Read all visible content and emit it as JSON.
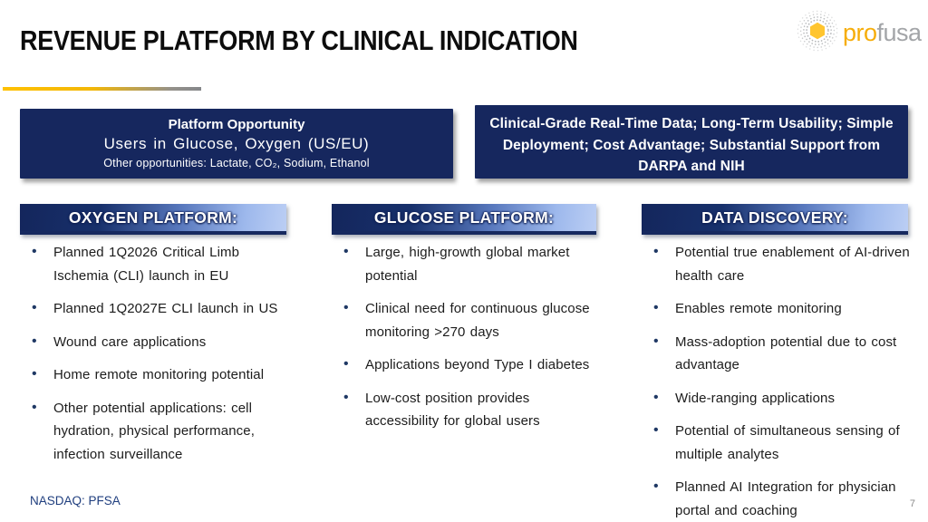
{
  "slide": {
    "title": "REVENUE PLATFORM BY CLINICAL INDICATION",
    "ticker": "NASDAQ: PFSA",
    "page_number": "7"
  },
  "logo": {
    "pro": "pro",
    "fusa": "fusa"
  },
  "info_boxes": {
    "left": {
      "line1": "Platform Opportunity",
      "line2": "Users in Glucose, Oxygen (US/EU)",
      "line3": "Other opportunities: Lactate, CO₂, Sodium, Ethanol"
    },
    "right": {
      "text": "Clinical-Grade Real-Time Data; Long-Term Usability; Simple Deployment; Cost Advantage; Substantial Support from DARPA and NIH"
    }
  },
  "columns": [
    {
      "header": "OXYGEN PLATFORM:",
      "bullets": [
        "Planned 1Q2026 Critical Limb Ischemia (CLI) launch in EU",
        "Planned 1Q2027E CLI launch in US",
        "Wound care applications",
        "Home remote monitoring potential",
        "Other potential applications: cell hydration, physical performance, infection surveillance"
      ]
    },
    {
      "header": "GLUCOSE PLATFORM:",
      "bullets": [
        "Large, high-growth global market potential",
        "Clinical need for continuous glucose monitoring >270 days",
        "Applications beyond Type I diabetes",
        "Low-cost position provides accessibility for global users"
      ]
    },
    {
      "header": "DATA DISCOVERY:",
      "bullets": [
        "Potential true enablement of AI-driven health care",
        "Enables remote monitoring",
        "Mass-adoption potential due to cost advantage",
        "Wide-ranging applications",
        "Potential of simultaneous sensing of multiple analytes",
        "Planned AI Integration for physician portal and coaching"
      ]
    }
  ],
  "colors": {
    "navy": "#16275e",
    "periwinkle": "#a8c0ee",
    "gold": "#ffc000",
    "gray": "#8a8a8a",
    "logo_yellow": "#f6ad0a",
    "logo_gray": "#a3a5a8"
  }
}
